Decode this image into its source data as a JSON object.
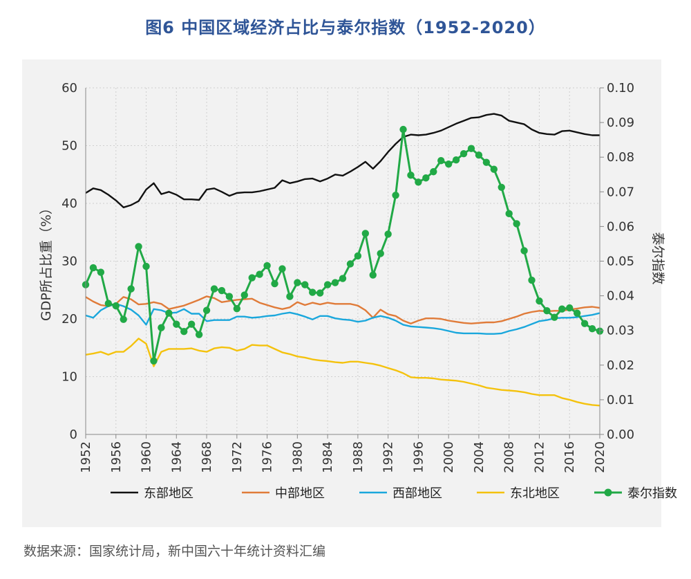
{
  "title": "图6  中国区域经济占比与泰尔指数（1952-2020）",
  "source": "数据来源：国家统计局，新中国六十年统计资料汇编",
  "chart_data": {
    "type": "line",
    "ylabel": "GDP所占比重（%）",
    "y2label": "泰尔指数",
    "ylim": [
      0,
      60
    ],
    "y2lim": [
      0,
      0.1
    ],
    "yticks": [
      "0",
      "10",
      "20",
      "30",
      "40",
      "50",
      "60"
    ],
    "y2ticks": [
      "0.00",
      "0.01",
      "0.02",
      "0.03",
      "0.04",
      "0.05",
      "0.06",
      "0.07",
      "0.08",
      "0.09",
      "0.10"
    ],
    "xticks": [
      "1952",
      "1956",
      "1960",
      "1964",
      "1968",
      "1972",
      "1976",
      "1980",
      "1984",
      "1988",
      "1992",
      "1996",
      "2000",
      "2004",
      "2008",
      "2012",
      "2016",
      "2020"
    ],
    "grid": true,
    "legend_position": "bottom",
    "x": [
      1952,
      1953,
      1954,
      1955,
      1956,
      1957,
      1958,
      1959,
      1960,
      1961,
      1962,
      1963,
      1964,
      1965,
      1966,
      1967,
      1968,
      1969,
      1970,
      1971,
      1972,
      1973,
      1974,
      1975,
      1976,
      1977,
      1978,
      1979,
      1980,
      1981,
      1982,
      1983,
      1984,
      1985,
      1986,
      1987,
      1988,
      1989,
      1990,
      1991,
      1992,
      1993,
      1994,
      1995,
      1996,
      1997,
      1998,
      1999,
      2000,
      2001,
      2002,
      2003,
      2004,
      2005,
      2006,
      2007,
      2008,
      2009,
      2010,
      2011,
      2012,
      2013,
      2014,
      2015,
      2016,
      2017,
      2018,
      2019,
      2020
    ],
    "series": [
      {
        "name": "东部地区",
        "axis": "left",
        "color": "#111111",
        "marker": false,
        "values": [
          41.8,
          42.6,
          42.3,
          41.5,
          40.5,
          39.3,
          39.7,
          40.4,
          42.4,
          43.5,
          41.6,
          42.0,
          41.5,
          40.7,
          40.7,
          40.6,
          42.4,
          42.6,
          42.0,
          41.3,
          41.8,
          41.9,
          41.9,
          42.1,
          42.4,
          42.7,
          44.0,
          43.5,
          43.8,
          44.2,
          44.3,
          43.8,
          44.3,
          45.0,
          44.8,
          45.5,
          46.3,
          47.2,
          46.0,
          47.3,
          48.9,
          50.3,
          51.5,
          51.9,
          51.8,
          51.9,
          52.2,
          52.6,
          53.2,
          53.8,
          54.3,
          54.8,
          54.9,
          55.3,
          55.5,
          55.2,
          54.3,
          54.0,
          53.7,
          52.8,
          52.2,
          52.0,
          51.9,
          52.5,
          52.6,
          52.3,
          52.0,
          51.8,
          51.8
        ]
      },
      {
        "name": "中部地区",
        "axis": "left",
        "color": "#e07b39",
        "marker": false,
        "values": [
          23.8,
          23.0,
          22.4,
          22.2,
          22.6,
          23.8,
          23.4,
          22.5,
          22.6,
          22.9,
          22.6,
          21.7,
          22.0,
          22.3,
          22.8,
          23.3,
          23.9,
          23.6,
          22.9,
          23.1,
          23.3,
          23.4,
          23.5,
          22.8,
          22.4,
          22.0,
          21.7,
          22.0,
          22.9,
          22.4,
          22.8,
          22.5,
          22.8,
          22.6,
          22.6,
          22.6,
          22.3,
          21.5,
          20.2,
          21.6,
          20.8,
          20.5,
          19.7,
          19.2,
          19.7,
          20.1,
          20.1,
          20.0,
          19.7,
          19.5,
          19.3,
          19.2,
          19.3,
          19.4,
          19.4,
          19.6,
          20.0,
          20.4,
          20.9,
          21.2,
          21.4,
          21.3,
          21.4,
          21.4,
          21.6,
          21.8,
          22.0,
          22.1,
          21.9
        ]
      },
      {
        "name": "西部地区",
        "axis": "left",
        "color": "#1aa7dc",
        "marker": false,
        "values": [
          20.6,
          20.2,
          21.5,
          22.2,
          22.6,
          22.2,
          21.6,
          20.6,
          19.0,
          21.7,
          21.5,
          21.0,
          21.1,
          21.7,
          20.9,
          20.9,
          19.6,
          19.8,
          19.8,
          19.8,
          20.4,
          20.4,
          20.2,
          20.3,
          20.5,
          20.6,
          20.9,
          21.1,
          20.8,
          20.4,
          19.9,
          20.5,
          20.5,
          20.1,
          19.9,
          19.8,
          19.5,
          19.7,
          20.2,
          20.5,
          20.2,
          19.7,
          19.0,
          18.7,
          18.6,
          18.5,
          18.4,
          18.2,
          17.9,
          17.6,
          17.5,
          17.5,
          17.5,
          17.4,
          17.4,
          17.5,
          17.9,
          18.2,
          18.6,
          19.1,
          19.6,
          19.8,
          20.1,
          20.2,
          20.2,
          20.3,
          20.5,
          20.7,
          21.0
        ]
      },
      {
        "name": "东北地区",
        "axis": "left",
        "color": "#f4c20d",
        "marker": false,
        "values": [
          13.8,
          14.0,
          14.3,
          13.8,
          14.3,
          14.3,
          15.3,
          16.6,
          15.7,
          11.8,
          14.3,
          14.8,
          14.8,
          14.8,
          14.9,
          14.5,
          14.3,
          14.9,
          15.1,
          15.0,
          14.5,
          14.8,
          15.5,
          15.4,
          15.4,
          14.8,
          14.2,
          13.9,
          13.5,
          13.3,
          13.0,
          12.8,
          12.7,
          12.5,
          12.4,
          12.6,
          12.6,
          12.4,
          12.2,
          11.9,
          11.5,
          11.1,
          10.6,
          9.9,
          9.8,
          9.8,
          9.7,
          9.5,
          9.4,
          9.3,
          9.1,
          8.8,
          8.5,
          8.1,
          7.9,
          7.7,
          7.6,
          7.5,
          7.3,
          7.0,
          6.8,
          6.8,
          6.8,
          6.3,
          6.0,
          5.6,
          5.3,
          5.1,
          5.0
        ]
      },
      {
        "name": "泰尔指数",
        "axis": "right",
        "color": "#21a946",
        "marker": true,
        "values": [
          0.0432,
          0.0481,
          0.0468,
          0.0378,
          0.0371,
          0.0332,
          0.042,
          0.0542,
          0.0485,
          0.0212,
          0.0308,
          0.035,
          0.0318,
          0.0297,
          0.0318,
          0.0288,
          0.0358,
          0.042,
          0.0415,
          0.0398,
          0.0363,
          0.0402,
          0.0452,
          0.0462,
          0.0487,
          0.0435,
          0.0478,
          0.0398,
          0.0438,
          0.0432,
          0.041,
          0.0408,
          0.0432,
          0.0438,
          0.045,
          0.0492,
          0.0515,
          0.058,
          0.046,
          0.0522,
          0.0578,
          0.069,
          0.088,
          0.0748,
          0.0728,
          0.074,
          0.0758,
          0.079,
          0.078,
          0.0792,
          0.081,
          0.0825,
          0.0806,
          0.0785,
          0.0765,
          0.0713,
          0.0637,
          0.0608,
          0.053,
          0.0445,
          0.0385,
          0.0357,
          0.0338,
          0.0362,
          0.0365,
          0.035,
          0.032,
          0.0305,
          0.0298
        ]
      }
    ]
  }
}
